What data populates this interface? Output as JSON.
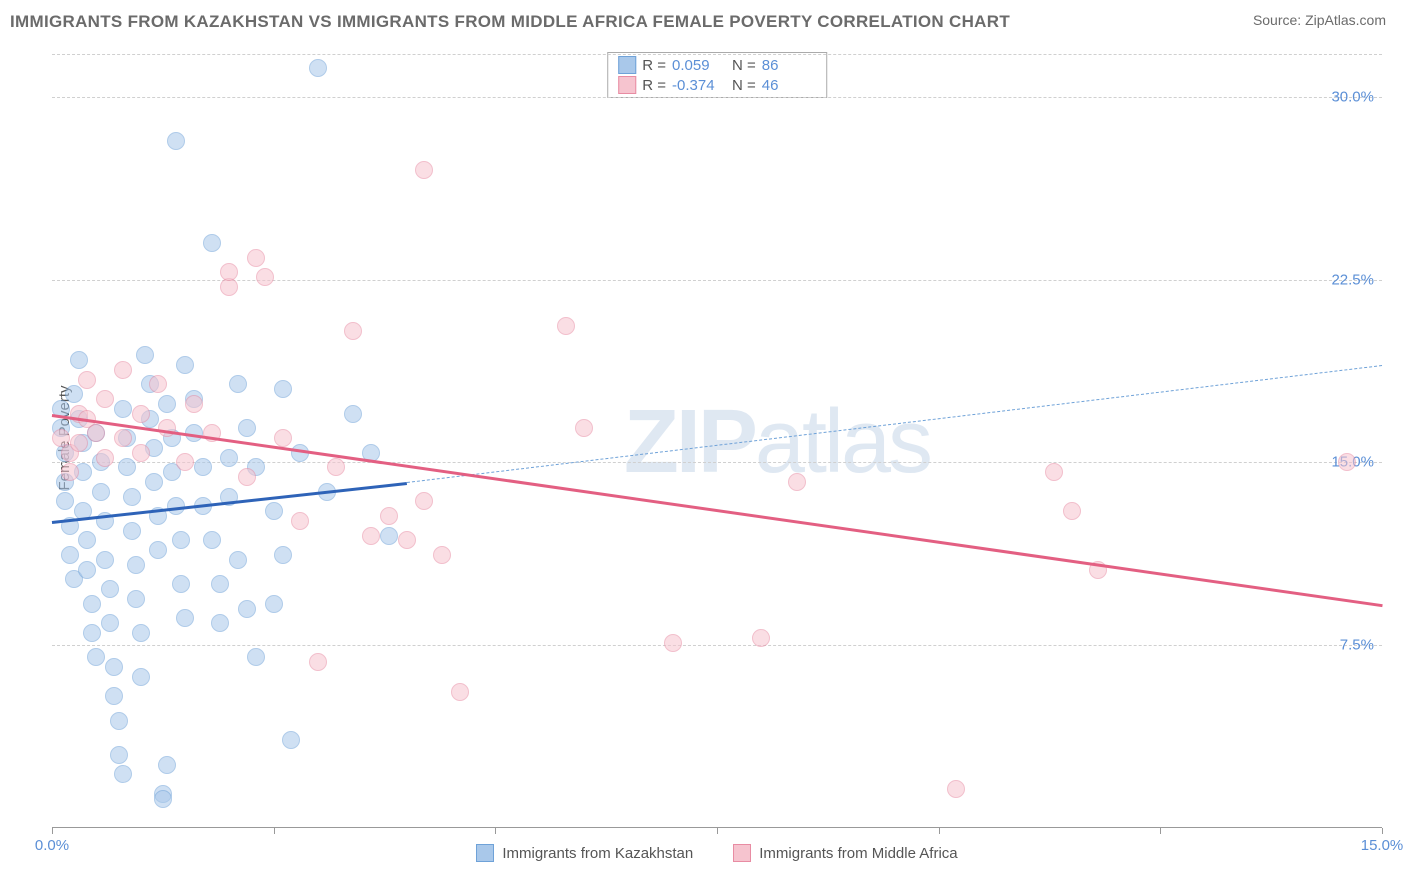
{
  "title": "IMMIGRANTS FROM KAZAKHSTAN VS IMMIGRANTS FROM MIDDLE AFRICA FEMALE POVERTY CORRELATION CHART",
  "source": "Source: ZipAtlas.com",
  "watermark_a": "ZIP",
  "watermark_b": "atlas",
  "chart": {
    "type": "scatter",
    "ylabel": "Female Poverty",
    "background_color": "#ffffff",
    "grid_color": "#d0d0d0",
    "xlim": [
      0,
      15
    ],
    "ylim": [
      0,
      32
    ],
    "yticks": [
      7.5,
      15.0,
      22.5,
      30.0
    ],
    "ytick_labels": [
      "7.5%",
      "15.0%",
      "22.5%",
      "30.0%"
    ],
    "xticks_minor": [
      0,
      2.5,
      5,
      7.5,
      10,
      12.5,
      15
    ],
    "xtick_labels": [
      {
        "x": 0,
        "label": "0.0%"
      },
      {
        "x": 15,
        "label": "15.0%"
      }
    ],
    "marker_radius": 9,
    "series": [
      {
        "name": "Immigrants from Kazakhstan",
        "fill_color": "#a9c8ea",
        "stroke_color": "#6fa2d8",
        "fill_opacity": 0.55,
        "R": "0.059",
        "N": "86",
        "trend": {
          "solid": {
            "x1": 0.0,
            "y1": 12.6,
            "x2": 4.0,
            "y2": 14.2,
            "color": "#2e63b8",
            "width": 3
          },
          "dashed": {
            "x1": 4.0,
            "y1": 14.2,
            "x2": 15.0,
            "y2": 19.0,
            "color": "#6fa2d8",
            "width": 1.5
          }
        },
        "points": [
          [
            0.1,
            17.2
          ],
          [
            0.1,
            16.4
          ],
          [
            0.15,
            15.4
          ],
          [
            0.15,
            14.2
          ],
          [
            0.15,
            13.4
          ],
          [
            0.2,
            12.4
          ],
          [
            0.2,
            11.2
          ],
          [
            0.25,
            10.2
          ],
          [
            0.25,
            17.8
          ],
          [
            0.3,
            19.2
          ],
          [
            0.3,
            16.8
          ],
          [
            0.35,
            15.8
          ],
          [
            0.35,
            14.6
          ],
          [
            0.35,
            13.0
          ],
          [
            0.4,
            11.8
          ],
          [
            0.4,
            10.6
          ],
          [
            0.45,
            9.2
          ],
          [
            0.45,
            8.0
          ],
          [
            0.5,
            7.0
          ],
          [
            0.5,
            16.2
          ],
          [
            0.55,
            15.0
          ],
          [
            0.55,
            13.8
          ],
          [
            0.6,
            12.6
          ],
          [
            0.6,
            11.0
          ],
          [
            0.65,
            9.8
          ],
          [
            0.65,
            8.4
          ],
          [
            0.7,
            6.6
          ],
          [
            0.7,
            5.4
          ],
          [
            0.75,
            4.4
          ],
          [
            0.75,
            3.0
          ],
          [
            0.8,
            2.2
          ],
          [
            0.8,
            17.2
          ],
          [
            0.85,
            16.0
          ],
          [
            0.85,
            14.8
          ],
          [
            0.9,
            13.6
          ],
          [
            0.9,
            12.2
          ],
          [
            0.95,
            10.8
          ],
          [
            0.95,
            9.4
          ],
          [
            1.0,
            8.0
          ],
          [
            1.0,
            6.2
          ],
          [
            1.05,
            19.4
          ],
          [
            1.1,
            18.2
          ],
          [
            1.1,
            16.8
          ],
          [
            1.15,
            15.6
          ],
          [
            1.15,
            14.2
          ],
          [
            1.2,
            12.8
          ],
          [
            1.2,
            11.4
          ],
          [
            1.25,
            1.4
          ],
          [
            1.25,
            1.2
          ],
          [
            1.3,
            2.6
          ],
          [
            1.3,
            17.4
          ],
          [
            1.35,
            16.0
          ],
          [
            1.35,
            14.6
          ],
          [
            1.4,
            28.2
          ],
          [
            1.4,
            13.2
          ],
          [
            1.45,
            11.8
          ],
          [
            1.45,
            10.0
          ],
          [
            1.5,
            8.6
          ],
          [
            1.5,
            19.0
          ],
          [
            1.6,
            17.6
          ],
          [
            1.6,
            16.2
          ],
          [
            1.7,
            14.8
          ],
          [
            1.7,
            13.2
          ],
          [
            1.8,
            11.8
          ],
          [
            1.8,
            24.0
          ],
          [
            1.9,
            10.0
          ],
          [
            1.9,
            8.4
          ],
          [
            2.0,
            15.2
          ],
          [
            2.0,
            13.6
          ],
          [
            2.1,
            18.2
          ],
          [
            2.1,
            11.0
          ],
          [
            2.2,
            9.0
          ],
          [
            2.2,
            16.4
          ],
          [
            2.3,
            14.8
          ],
          [
            2.3,
            7.0
          ],
          [
            2.5,
            13.0
          ],
          [
            2.5,
            9.2
          ],
          [
            2.6,
            18.0
          ],
          [
            2.6,
            11.2
          ],
          [
            2.7,
            3.6
          ],
          [
            2.8,
            15.4
          ],
          [
            3.0,
            31.2
          ],
          [
            3.1,
            13.8
          ],
          [
            3.4,
            17.0
          ],
          [
            3.6,
            15.4
          ],
          [
            3.8,
            12.0
          ]
        ]
      },
      {
        "name": "Immigrants from Middle Africa",
        "fill_color": "#f6c4cf",
        "stroke_color": "#e88ca3",
        "fill_opacity": 0.55,
        "R": "-0.374",
        "N": "46",
        "trend": {
          "solid": {
            "x1": 0.0,
            "y1": 17.0,
            "x2": 15.0,
            "y2": 9.2,
            "color": "#e35f82",
            "width": 3
          },
          "dashed": null
        },
        "points": [
          [
            0.1,
            16.0
          ],
          [
            0.2,
            15.4
          ],
          [
            0.2,
            14.6
          ],
          [
            0.3,
            17.0
          ],
          [
            0.3,
            15.8
          ],
          [
            0.4,
            16.8
          ],
          [
            0.4,
            18.4
          ],
          [
            0.5,
            16.2
          ],
          [
            0.6,
            15.2
          ],
          [
            0.6,
            17.6
          ],
          [
            0.8,
            16.0
          ],
          [
            0.8,
            18.8
          ],
          [
            1.0,
            15.4
          ],
          [
            1.0,
            17.0
          ],
          [
            1.2,
            18.2
          ],
          [
            1.3,
            16.4
          ],
          [
            1.5,
            15.0
          ],
          [
            1.6,
            17.4
          ],
          [
            1.8,
            16.2
          ],
          [
            2.0,
            22.2
          ],
          [
            2.0,
            22.8
          ],
          [
            2.2,
            14.4
          ],
          [
            2.3,
            23.4
          ],
          [
            2.4,
            22.6
          ],
          [
            2.6,
            16.0
          ],
          [
            2.8,
            12.6
          ],
          [
            3.0,
            6.8
          ],
          [
            3.2,
            14.8
          ],
          [
            3.4,
            20.4
          ],
          [
            3.6,
            12.0
          ],
          [
            3.8,
            12.8
          ],
          [
            4.0,
            11.8
          ],
          [
            4.2,
            27.0
          ],
          [
            4.2,
            13.4
          ],
          [
            4.4,
            11.2
          ],
          [
            4.6,
            5.6
          ],
          [
            5.8,
            20.6
          ],
          [
            6.0,
            16.4
          ],
          [
            7.0,
            7.6
          ],
          [
            8.0,
            7.8
          ],
          [
            8.4,
            14.2
          ],
          [
            10.2,
            1.6
          ],
          [
            11.3,
            14.6
          ],
          [
            11.5,
            13.0
          ],
          [
            11.8,
            10.6
          ],
          [
            14.6,
            15.0
          ]
        ]
      }
    ],
    "bottom_legend": [
      {
        "swatch_fill": "#a9c8ea",
        "swatch_stroke": "#6fa2d8",
        "label": "Immigrants from Kazakhstan"
      },
      {
        "swatch_fill": "#f6c4cf",
        "swatch_stroke": "#e88ca3",
        "label": "Immigrants from Middle Africa"
      }
    ]
  }
}
